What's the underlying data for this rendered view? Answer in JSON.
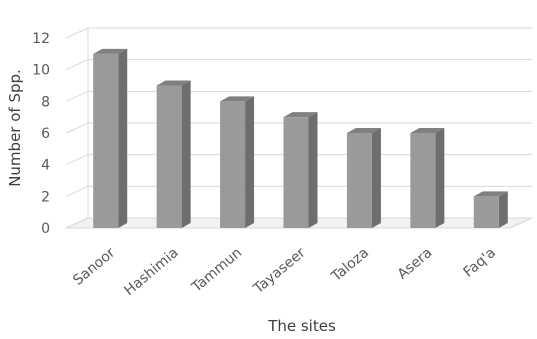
{
  "chart_data": {
    "type": "bar",
    "style": "3d",
    "categories": [
      "Sanoor",
      "Hashimia",
      "Tammun",
      "Tayaseer",
      "Taloza",
      "Asera",
      "Faq'a"
    ],
    "values": [
      11,
      9,
      8,
      7,
      6,
      6,
      2
    ],
    "xlabel": "The sites",
    "ylabel": "Number of Spp.",
    "ylim": [
      0,
      12
    ],
    "yticks": [
      0,
      2,
      4,
      6,
      8,
      10,
      12
    ],
    "grid": true,
    "legend": "none",
    "colors": {
      "bar_front": "#9a9a9a",
      "bar_side": "#6e6e6e",
      "bar_top": "#808080",
      "grid": "#d9d9d9",
      "text": "#595959"
    }
  }
}
